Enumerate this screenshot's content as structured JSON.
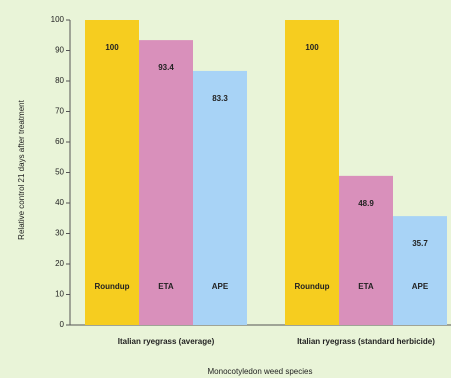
{
  "chart_data": {
    "type": "bar",
    "y_label": "Relative control 21 days after treatment",
    "x_label": "Monocotyledon weed species",
    "categories": [
      "Italian ryegrass (average)",
      "Italian ryegrass (standard herbicide)"
    ],
    "series": [
      {
        "name": "Roundup",
        "color": "#f6cd1f",
        "values": [
          100,
          100
        ],
        "value_labels": [
          "100",
          "100"
        ]
      },
      {
        "name": "ETA",
        "color": "#d990bb",
        "values": [
          93.4,
          48.9
        ],
        "value_labels": [
          "93.4",
          "48.9"
        ]
      },
      {
        "name": "APE",
        "color": "#a8d3f6",
        "values": [
          83.3,
          35.7
        ],
        "value_labels": [
          "83.3",
          "35.7"
        ]
      }
    ],
    "ylim": [
      0,
      100
    ],
    "yticks": [
      0,
      10,
      20,
      30,
      40,
      50,
      60,
      70,
      80,
      90,
      100
    ]
  }
}
